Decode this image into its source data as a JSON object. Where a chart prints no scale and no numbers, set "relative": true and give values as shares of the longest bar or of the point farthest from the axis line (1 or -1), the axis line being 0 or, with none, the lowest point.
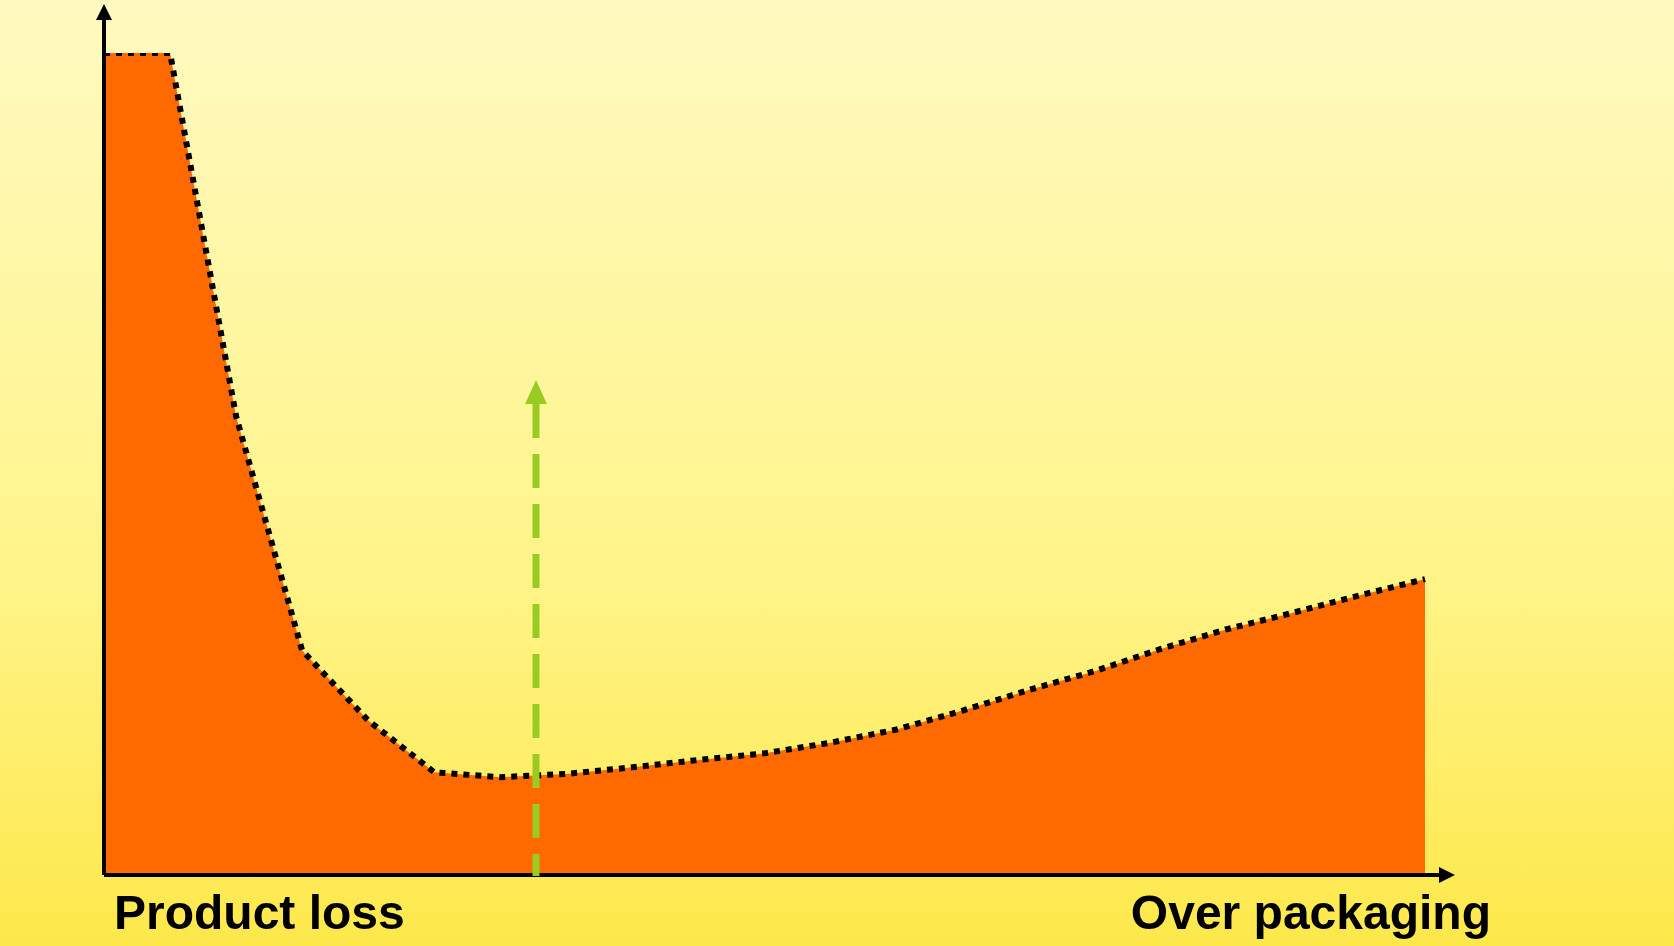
{
  "chart_data": {
    "type": "area",
    "relative": true,
    "line_style": "dotted",
    "annotations": [
      "Product loss",
      "Over packaging"
    ],
    "categories": [
      null,
      null,
      null,
      null,
      null,
      null,
      null,
      null,
      null,
      null,
      null,
      null,
      null,
      null,
      null,
      null,
      null,
      null,
      null,
      null,
      null
    ],
    "series": [
      {
        "color": "#ff6a00",
        "values": [
          1.0,
          1.0,
          0.558,
          0.273,
          0.188,
          0.125,
          0.119,
          0.123,
          0.131,
          0.14,
          0.148,
          0.161,
          0.177,
          0.2,
          0.225,
          0.248,
          0.275,
          0.299,
          0.319,
          0.34,
          0.36
        ]
      }
    ]
  }
}
